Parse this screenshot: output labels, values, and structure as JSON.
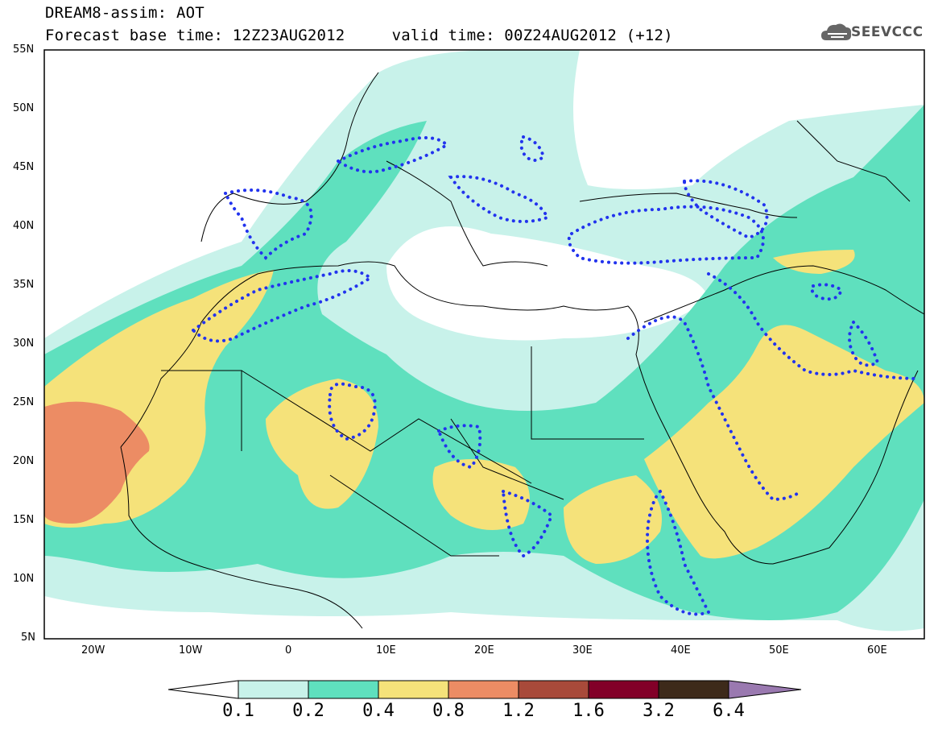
{
  "header": {
    "title_line1": "DREAM8-assim: AOT",
    "title_line2": "Forecast base time: 12Z23AUG2012     valid time: 00Z24AUG2012 (+12)",
    "logo_text": "SEEVCCC"
  },
  "map": {
    "lat_labels": [
      "55N",
      "50N",
      "45N",
      "40N",
      "35N",
      "30N",
      "25N",
      "20N",
      "15N",
      "10N",
      "5N"
    ],
    "lon_labels": [
      "20W",
      "10W",
      "0",
      "10E",
      "20E",
      "30E",
      "40E",
      "50E",
      "60E"
    ],
    "colors": {
      "c01": "#c8f2ea",
      "c02": "#5fe0be",
      "c04": "#f5e27a",
      "c08": "#ec8c64",
      "dust_contour": "#2233ee"
    }
  },
  "colorbar": {
    "labels": [
      "0.1",
      "0.2",
      "0.4",
      "0.8",
      "1.2",
      "1.6",
      "3.2",
      "6.4"
    ],
    "colors": [
      "#c8f2ea",
      "#5fe0be",
      "#f5e27a",
      "#ec8c64",
      "#a84a3a",
      "#820028",
      "#3d2a1a",
      "#9a79b0"
    ]
  }
}
